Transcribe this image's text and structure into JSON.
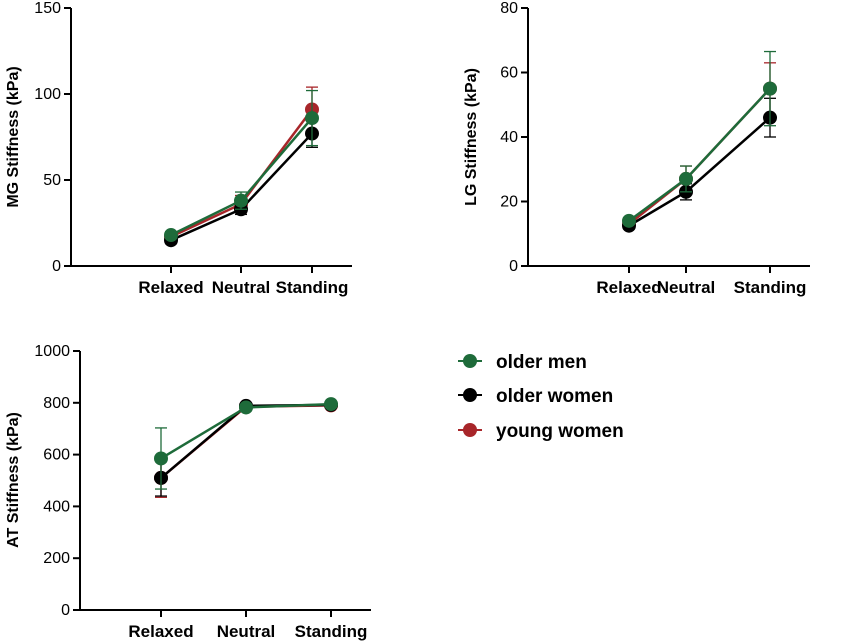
{
  "legend": [
    {
      "label": "older men",
      "color": "#1e6b3a"
    },
    {
      "label": "older women",
      "color": "#000000"
    },
    {
      "label": "young women",
      "color": "#a8262a"
    }
  ],
  "chart_data": [
    {
      "type": "line",
      "ylabel": "MG Stiffness (kPa)",
      "categories": [
        "Relaxed",
        "Neutral",
        "Standing"
      ],
      "ylim": [
        0,
        150
      ],
      "yticks": [
        0,
        50,
        100,
        150
      ],
      "series": [
        {
          "name": "young women",
          "values": [
            17,
            36,
            91
          ],
          "errors": [
            2,
            5,
            13
          ]
        },
        {
          "name": "older women",
          "values": [
            15,
            33,
            77
          ],
          "errors": [
            2,
            3,
            8
          ]
        },
        {
          "name": "older men",
          "values": [
            18,
            38,
            86
          ],
          "errors": [
            2,
            5,
            16
          ]
        }
      ]
    },
    {
      "type": "line",
      "ylabel": "LG Stiffness (kPa)",
      "categories": [
        "Relaxed",
        "Neutral",
        "Standing"
      ],
      "ylim": [
        0,
        80
      ],
      "yticks": [
        0,
        20,
        40,
        60,
        80
      ],
      "series": [
        {
          "name": "young women",
          "values": [
            13,
            27,
            55
          ],
          "errors": [
            1,
            4,
            8
          ]
        },
        {
          "name": "older women",
          "values": [
            12.5,
            23,
            46
          ],
          "errors": [
            1,
            2.5,
            6
          ]
        },
        {
          "name": "older men",
          "values": [
            14,
            27,
            55
          ],
          "errors": [
            1,
            4,
            11.5
          ]
        }
      ]
    },
    {
      "type": "line",
      "ylabel": "AT Stiffness (kPa)",
      "categories": [
        "Relaxed",
        "Neutral",
        "Standing"
      ],
      "ylim": [
        0,
        1000
      ],
      "yticks": [
        0,
        200,
        400,
        600,
        800,
        1000
      ],
      "series": [
        {
          "name": "young women",
          "values": [
            510,
            785,
            790
          ],
          "errors": [
            75,
            10,
            8
          ]
        },
        {
          "name": "older women",
          "values": [
            510,
            788,
            792
          ],
          "errors": [
            70,
            10,
            8
          ]
        },
        {
          "name": "older men",
          "values": [
            585,
            782,
            795
          ],
          "errors": [
            118,
            10,
            8
          ]
        }
      ]
    }
  ]
}
